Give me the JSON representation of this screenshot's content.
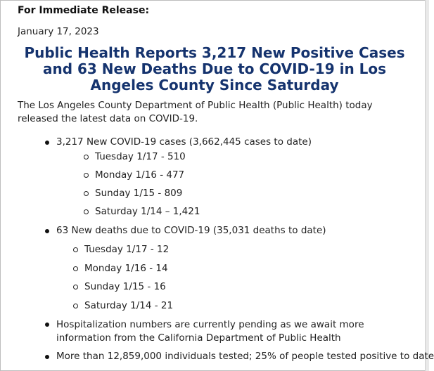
{
  "release_label": "For Immediate Release:",
  "release_date": "January 17, 2023",
  "headline": "Public Health Reports 3,217 New Positive Cases and 63 New Deaths Due to COVID-19 in Los Angeles County Since Saturday",
  "intro": "The Los Angeles County Department of Public Health (Public Health) today released the latest data on COVID-19.",
  "cases": {
    "label": "3,217 New COVID-19 cases (3,662,445 cases to date)",
    "items": [
      "Tuesday 1/17 - 510",
      "Monday 1/16 - 477",
      "Sunday 1/15 - 809",
      "Saturday 1/14 – 1,421"
    ]
  },
  "deaths": {
    "label": "63 New deaths due to COVID-19 (35,031 deaths to date)",
    "items": [
      "Tuesday 1/17 - 12",
      "Monday 1/16 - 14",
      "Sunday 1/15 - 16",
      "Saturday 1/14 - 21"
    ]
  },
  "hospitalization": "Hospitalization numbers are currently pending as we await more information from the California Department of Public Health",
  "testing": "More than 12,859,000 individuals tested; 25% of people tested positive to date"
}
